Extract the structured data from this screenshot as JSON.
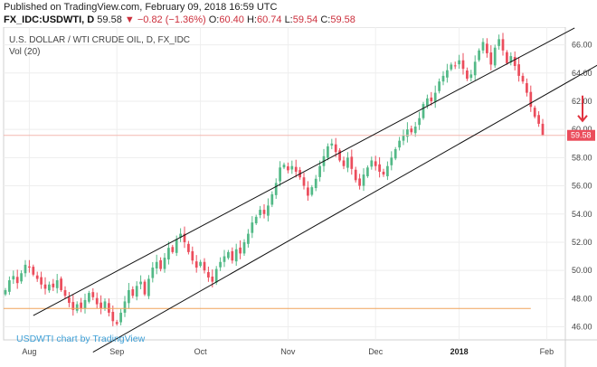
{
  "header": {
    "published": "Published on TradingView.com, February 09, 2018 16:59 UTC",
    "symbol": "FX_IDC:USDWTI, D",
    "last": "59.58",
    "arrow": "▼",
    "change": "−0.82 (−1.36%)",
    "o_label": "O:",
    "o_value": "60.40",
    "h_label": "H:",
    "h_value": "60.74",
    "l_label": "L:",
    "l_value": "59.54",
    "c_label": "C:",
    "c_value": "59.58"
  },
  "chart_title": "U.S. DOLLAR / WTI CRUDE OIL, D, FX_IDC",
  "vol_label": "Vol (20)",
  "watermark": "USDWTI chart by TradingView",
  "colors": {
    "up": "#53b987",
    "down": "#eb4d5c",
    "channel": "#111111",
    "support": "#f0a35a",
    "price_line": "#f3b7b0",
    "price_tag": "#eb4d5c",
    "arrow": "#e0323f",
    "grid": "#eeeeee"
  },
  "chart_data": {
    "type": "candlestick",
    "title": "U.S. DOLLAR / WTI CRUDE OIL, D, FX_IDC",
    "ylim": [
      45.2,
      67.0
    ],
    "yticks": [
      46.0,
      48.0,
      50.0,
      52.0,
      54.0,
      56.0,
      58.0,
      60.0,
      62.0,
      64.0,
      66.0
    ],
    "ytick_labels": [
      "46.00",
      "48.00",
      "50.00",
      "52.00",
      "54.00",
      "56.00",
      "58.00",
      "60.00",
      "62.00",
      "64.00",
      "66.00"
    ],
    "xlim": [
      0,
      140
    ],
    "xticks": [
      {
        "label": "Aug",
        "x": 6,
        "bold": false
      },
      {
        "label": "Sep",
        "x": 28,
        "bold": false
      },
      {
        "label": "Oct",
        "x": 49,
        "bold": false
      },
      {
        "label": "Nov",
        "x": 71,
        "bold": false
      },
      {
        "label": "Dec",
        "x": 93,
        "bold": false
      },
      {
        "label": "2018",
        "x": 114,
        "bold": true
      },
      {
        "label": "Feb",
        "x": 136,
        "bold": false
      }
    ],
    "last_price": 59.58,
    "last_price_label": "59.58",
    "support_level": 47.3,
    "channel_lines": [
      {
        "name": "upper",
        "x1": 7,
        "y1": 46.8,
        "x2": 143,
        "y2": 67.2
      },
      {
        "name": "lower",
        "x1": 22,
        "y1": 44.2,
        "x2": 149,
        "y2": 64.6
      }
    ],
    "arrow": {
      "x": 145,
      "from": 62.4,
      "to": 60.6
    },
    "candles": []
  }
}
